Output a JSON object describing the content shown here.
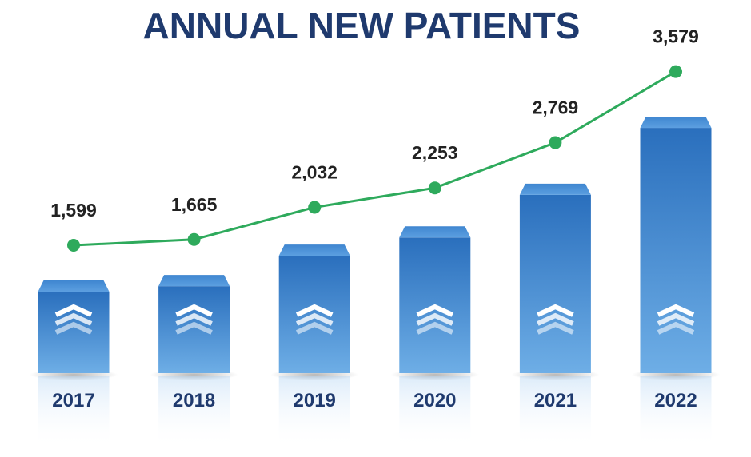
{
  "chart_data": {
    "type": "bar",
    "title": "ANNUAL NEW PATIENTS",
    "xlabel": "",
    "ylabel": "",
    "categories": [
      "2017",
      "2018",
      "2019",
      "2020",
      "2021",
      "2022"
    ],
    "values": [
      1599,
      1665,
      2032,
      2253,
      2769,
      3579
    ],
    "value_labels": [
      "1,599",
      "1,665",
      "2,032",
      "2,253",
      "2,769",
      "3,579"
    ],
    "overlay_line": true,
    "grid": false,
    "legend": "none",
    "colors": {
      "title": "#1f3a6e",
      "bar_top": "#2a6fbd",
      "bar_bottom": "#6eaee6",
      "bar_cap": "#4d90d6",
      "line": "#2eaa5c",
      "year_label": "#1f3a6e",
      "value_label": "#222222"
    },
    "bar_icon": "triple-chevron-up-icon"
  }
}
